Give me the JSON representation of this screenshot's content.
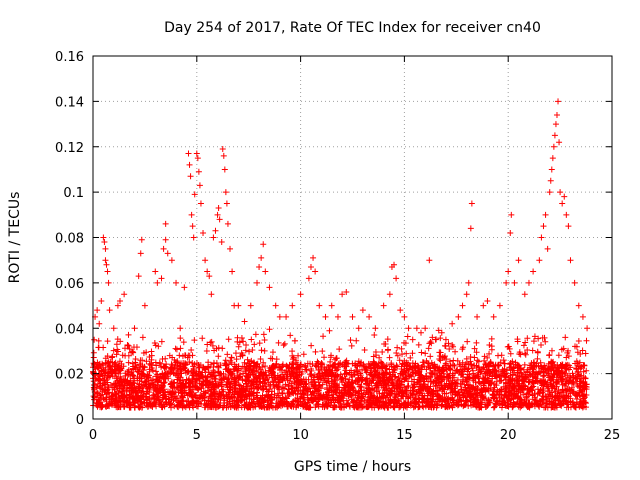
{
  "chart_data": {
    "type": "scatter",
    "title": "Day 254 of 2017, Rate Of TEC Index for receiver cn40",
    "xlabel": "GPS time / hours",
    "ylabel": "ROTI / TECUs",
    "xlim": [
      0,
      25
    ],
    "ylim": [
      0,
      0.16
    ],
    "x_ticks": [
      0,
      5,
      10,
      15,
      20,
      25
    ],
    "x_tick_labels": [
      "0",
      "5",
      "10",
      "15",
      "20",
      "25"
    ],
    "y_ticks": [
      0,
      0.02,
      0.04,
      0.06,
      0.08,
      0.1,
      0.12,
      0.14,
      0.16
    ],
    "y_tick_labels": [
      "0",
      "0.02",
      "0.04",
      "0.06",
      "0.08",
      "0.1",
      "0.12",
      "0.14",
      "0.16"
    ],
    "grid": true,
    "marker": "+",
    "series_color": "#ff0000",
    "background_band": {
      "x_range": [
        0,
        23.8
      ],
      "y_range": [
        0.005,
        0.025
      ],
      "description": "dense continuous cloud of points spanning the whole day"
    },
    "series": [
      {
        "name": "ROTI",
        "points": [
          [
            0.1,
            0.045
          ],
          [
            0.2,
            0.048
          ],
          [
            0.3,
            0.042
          ],
          [
            0.5,
            0.08
          ],
          [
            0.55,
            0.078
          ],
          [
            0.6,
            0.075
          ],
          [
            0.6,
            0.07
          ],
          [
            0.65,
            0.068
          ],
          [
            0.7,
            0.065
          ],
          [
            0.75,
            0.06
          ],
          [
            0.4,
            0.052
          ],
          [
            0.8,
            0.048
          ],
          [
            1.0,
            0.04
          ],
          [
            1.2,
            0.05
          ],
          [
            1.3,
            0.052
          ],
          [
            1.5,
            0.055
          ],
          [
            2.0,
            0.04
          ],
          [
            2.2,
            0.063
          ],
          [
            2.3,
            0.073
          ],
          [
            2.35,
            0.079
          ],
          [
            2.5,
            0.05
          ],
          [
            3.0,
            0.065
          ],
          [
            3.1,
            0.06
          ],
          [
            3.3,
            0.062
          ],
          [
            3.4,
            0.075
          ],
          [
            3.5,
            0.079
          ],
          [
            3.6,
            0.073
          ],
          [
            3.8,
            0.07
          ],
          [
            3.5,
            0.086
          ],
          [
            4.0,
            0.06
          ],
          [
            4.2,
            0.04
          ],
          [
            4.4,
            0.058
          ],
          [
            4.6,
            0.117
          ],
          [
            4.65,
            0.112
          ],
          [
            4.7,
            0.107
          ],
          [
            4.75,
            0.09
          ],
          [
            4.8,
            0.085
          ],
          [
            4.85,
            0.08
          ],
          [
            4.9,
            0.099
          ],
          [
            5.0,
            0.117
          ],
          [
            5.05,
            0.115
          ],
          [
            5.1,
            0.109
          ],
          [
            5.15,
            0.103
          ],
          [
            5.2,
            0.095
          ],
          [
            5.3,
            0.082
          ],
          [
            5.4,
            0.07
          ],
          [
            5.5,
            0.065
          ],
          [
            5.6,
            0.063
          ],
          [
            5.7,
            0.055
          ],
          [
            5.8,
            0.08
          ],
          [
            5.9,
            0.083
          ],
          [
            6.0,
            0.09
          ],
          [
            6.05,
            0.093
          ],
          [
            6.1,
            0.088
          ],
          [
            6.2,
            0.078
          ],
          [
            6.25,
            0.119
          ],
          [
            6.3,
            0.116
          ],
          [
            6.35,
            0.11
          ],
          [
            6.4,
            0.1
          ],
          [
            6.45,
            0.095
          ],
          [
            6.5,
            0.086
          ],
          [
            6.6,
            0.075
          ],
          [
            6.7,
            0.065
          ],
          [
            6.8,
            0.05
          ],
          [
            7.0,
            0.05
          ],
          [
            7.3,
            0.043
          ],
          [
            7.6,
            0.05
          ],
          [
            7.9,
            0.06
          ],
          [
            8.0,
            0.067
          ],
          [
            8.1,
            0.071
          ],
          [
            8.2,
            0.077
          ],
          [
            8.3,
            0.065
          ],
          [
            8.5,
            0.058
          ],
          [
            8.8,
            0.05
          ],
          [
            9.0,
            0.045
          ],
          [
            9.3,
            0.045
          ],
          [
            9.6,
            0.05
          ],
          [
            10.0,
            0.055
          ],
          [
            10.4,
            0.062
          ],
          [
            10.5,
            0.067
          ],
          [
            10.6,
            0.071
          ],
          [
            10.7,
            0.065
          ],
          [
            10.9,
            0.05
          ],
          [
            11.2,
            0.045
          ],
          [
            11.5,
            0.05
          ],
          [
            11.8,
            0.045
          ],
          [
            12.0,
            0.055
          ],
          [
            12.2,
            0.056
          ],
          [
            12.5,
            0.045
          ],
          [
            12.8,
            0.04
          ],
          [
            13.0,
            0.048
          ],
          [
            13.3,
            0.045
          ],
          [
            13.6,
            0.04
          ],
          [
            14.0,
            0.05
          ],
          [
            14.3,
            0.055
          ],
          [
            14.4,
            0.067
          ],
          [
            14.5,
            0.068
          ],
          [
            14.6,
            0.062
          ],
          [
            14.8,
            0.048
          ],
          [
            15.0,
            0.045
          ],
          [
            15.2,
            0.04
          ],
          [
            15.4,
            0.035
          ],
          [
            15.6,
            0.04
          ],
          [
            15.8,
            0.038
          ],
          [
            16.0,
            0.04
          ],
          [
            16.2,
            0.07
          ],
          [
            16.5,
            0.035
          ],
          [
            16.8,
            0.038
          ],
          [
            17.0,
            0.035
          ],
          [
            17.3,
            0.042
          ],
          [
            17.6,
            0.045
          ],
          [
            17.8,
            0.05
          ],
          [
            18.0,
            0.055
          ],
          [
            18.1,
            0.06
          ],
          [
            18.2,
            0.084
          ],
          [
            18.25,
            0.095
          ],
          [
            18.5,
            0.045
          ],
          [
            18.8,
            0.05
          ],
          [
            19.0,
            0.052
          ],
          [
            19.3,
            0.045
          ],
          [
            19.6,
            0.05
          ],
          [
            19.9,
            0.06
          ],
          [
            20.0,
            0.065
          ],
          [
            20.1,
            0.082
          ],
          [
            20.15,
            0.09
          ],
          [
            20.3,
            0.06
          ],
          [
            20.5,
            0.07
          ],
          [
            20.8,
            0.055
          ],
          [
            21.0,
            0.06
          ],
          [
            21.2,
            0.065
          ],
          [
            21.5,
            0.07
          ],
          [
            21.6,
            0.08
          ],
          [
            21.7,
            0.085
          ],
          [
            21.8,
            0.09
          ],
          [
            21.9,
            0.075
          ],
          [
            22.0,
            0.1
          ],
          [
            22.05,
            0.105
          ],
          [
            22.1,
            0.11
          ],
          [
            22.15,
            0.115
          ],
          [
            22.2,
            0.12
          ],
          [
            22.25,
            0.125
          ],
          [
            22.3,
            0.13
          ],
          [
            22.35,
            0.134
          ],
          [
            22.4,
            0.14
          ],
          [
            22.45,
            0.122
          ],
          [
            22.5,
            0.1
          ],
          [
            22.6,
            0.095
          ],
          [
            22.7,
            0.098
          ],
          [
            22.8,
            0.09
          ],
          [
            22.9,
            0.085
          ],
          [
            23.0,
            0.07
          ],
          [
            23.2,
            0.06
          ],
          [
            23.4,
            0.05
          ],
          [
            23.6,
            0.045
          ],
          [
            23.8,
            0.04
          ]
        ]
      }
    ]
  }
}
